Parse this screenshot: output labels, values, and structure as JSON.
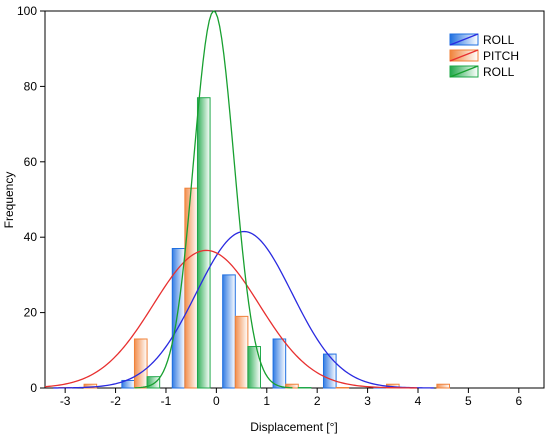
{
  "chart_data": {
    "type": "bar",
    "xlabel": "Displacement [°]",
    "ylabel": "Frequency",
    "xlim": [
      -3.4,
      6.5
    ],
    "ylim": [
      0,
      100
    ],
    "xticks": [
      -3,
      -2,
      -1,
      0,
      1,
      2,
      3,
      4,
      5,
      6
    ],
    "yticks": [
      0,
      20,
      40,
      60,
      80,
      100
    ],
    "bin_width": 0.25,
    "legend_position": "top-right",
    "series": [
      {
        "name": "ROLL",
        "color": "#1f6fe0",
        "curve_color": "#2a2ae0",
        "bins": [
          {
            "x": -1.75,
            "value": 2
          },
          {
            "x": -0.75,
            "value": 37
          },
          {
            "x": 0.25,
            "value": 30
          },
          {
            "x": 1.25,
            "value": 13
          },
          {
            "x": 2.25,
            "value": 9
          },
          {
            "x": 3.25,
            "value": 0
          }
        ],
        "fit": {
          "mean": 0.55,
          "sd": 0.95,
          "peak": 41.5
        }
      },
      {
        "name": "PITCH",
        "color": "#f0823a",
        "curve_color": "#e83030",
        "bins": [
          {
            "x": -3.0,
            "value": 0
          },
          {
            "x": -2.5,
            "value": 1
          },
          {
            "x": -1.5,
            "value": 13
          },
          {
            "x": -0.5,
            "value": 53
          },
          {
            "x": 0.5,
            "value": 19
          },
          {
            "x": 1.5,
            "value": 1
          },
          {
            "x": 2.5,
            "value": 0
          },
          {
            "x": 3.5,
            "value": 1
          },
          {
            "x": 4.5,
            "value": 1
          }
        ],
        "fit": {
          "mean": -0.2,
          "sd": 1.05,
          "peak": 36.5
        }
      },
      {
        "name": "ROLL",
        "color": "#1fa84a",
        "curve_color": "#18a030",
        "bins": [
          {
            "x": -1.25,
            "value": 3
          },
          {
            "x": -0.25,
            "value": 77
          },
          {
            "x": 0.75,
            "value": 11
          },
          {
            "x": 1.75,
            "value": 0
          }
        ],
        "fit": {
          "mean": -0.05,
          "sd": 0.4,
          "peak": 100
        }
      }
    ]
  }
}
